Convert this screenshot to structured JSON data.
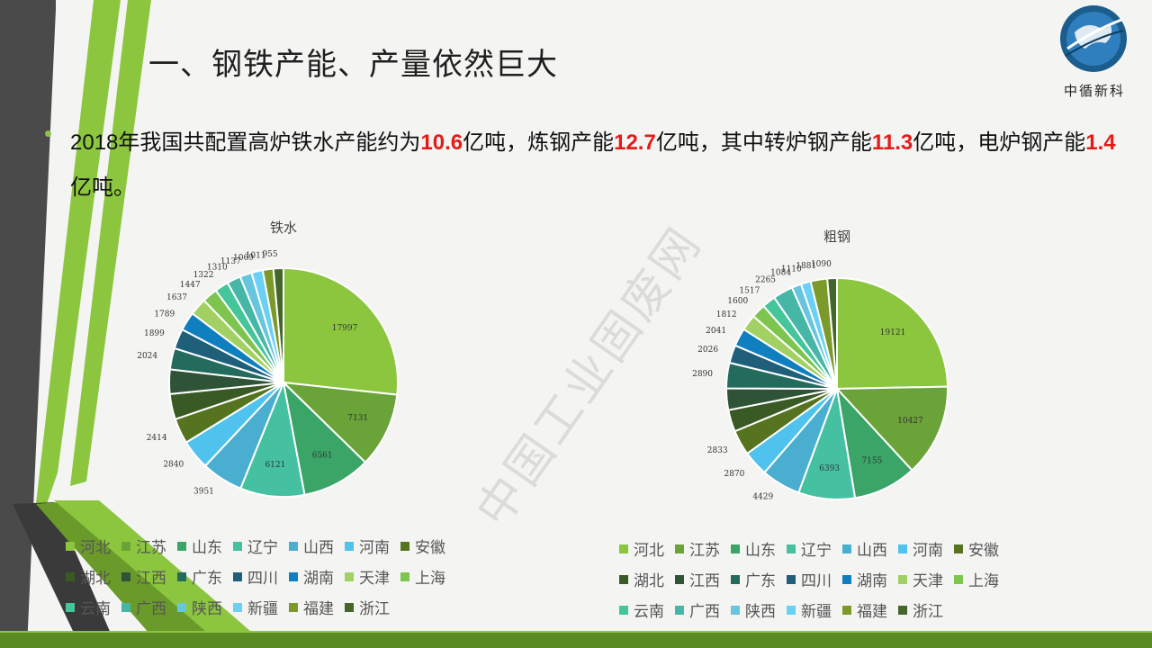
{
  "title": "一、钢铁产能、产量依然巨大",
  "logo": {
    "name": "中循新科"
  },
  "bullet": {
    "segments": [
      {
        "text": "2018年我国共配置高炉铁水产能约为",
        "hl": false
      },
      {
        "text": "10.6",
        "hl": true
      },
      {
        "text": "亿吨，炼钢产能",
        "hl": false
      },
      {
        "text": "12.7",
        "hl": true
      },
      {
        "text": "亿吨，其中转炉钢产能",
        "hl": false
      },
      {
        "text": "11.3",
        "hl": true
      },
      {
        "text": "亿吨，电炉钢产能",
        "hl": false
      },
      {
        "text": "1.4",
        "hl": true
      },
      {
        "text": "亿吨。",
        "hl": false
      }
    ]
  },
  "watermark": "中国工业固废网",
  "colors": {
    "palette": [
      "#8cc63f",
      "#6aa338",
      "#3aa567",
      "#45c1a1",
      "#4aaed0",
      "#4fc3ee",
      "#56741f",
      "#3a5a25",
      "#2f5337",
      "#236b5c",
      "#1f5f7a",
      "#0f7fbf",
      "#a3d063",
      "#7dc54f",
      "#44c59a",
      "#46b6a7",
      "#67c5dd",
      "#6ad0f4",
      "#7b9a2a",
      "#44662a"
    ],
    "accent_red": "#e41b17"
  },
  "chart_data": [
    {
      "type": "pie",
      "title": "铁水",
      "categories": [
        "河北",
        "江苏",
        "山东",
        "辽宁",
        "山西",
        "河南",
        "安徽",
        "湖北",
        "江西",
        "广东",
        "四川",
        "湖南",
        "天津",
        "上海",
        "云南",
        "广西",
        "陕西",
        "新疆",
        "福建",
        "浙江"
      ],
      "values": [
        17997,
        7131,
        6561,
        6121,
        3951,
        2840,
        2414,
        2414,
        2334,
        2024,
        1899,
        1789,
        1637,
        1447,
        1322,
        1310,
        1137,
        1069,
        1011,
        955
      ],
      "data_labels": [
        "17997",
        "7131",
        "6561",
        "6121",
        "3951",
        "2840",
        "2414",
        "",
        "",
        "2024",
        "1899",
        "1789",
        "1637",
        "1447",
        "1322",
        "1310",
        "1137",
        "1069",
        "1011",
        "955"
      ],
      "legend": "bottom"
    },
    {
      "type": "pie",
      "title": "粗钢",
      "categories": [
        "河北",
        "江苏",
        "山东",
        "辽宁",
        "山西",
        "河南",
        "安徽",
        "湖北",
        "江西",
        "广东",
        "四川",
        "湖南",
        "天津",
        "上海",
        "云南",
        "广西",
        "陕西",
        "新疆",
        "福建",
        "浙江"
      ],
      "values": [
        19121,
        10427,
        7155,
        6393,
        4429,
        2870,
        2833,
        2470,
        2437,
        2890,
        2026,
        2041,
        1812,
        1600,
        1517,
        2265,
        1084,
        1110,
        1881,
        1090
      ],
      "data_labels": [
        "19121",
        "10427",
        "7155",
        "6393",
        "4429",
        "2870",
        "2833",
        "",
        "",
        "2890",
        "2026",
        "2041",
        "1812",
        "1600",
        "1517",
        "2265",
        "1084",
        "1110",
        "1881",
        "1090"
      ],
      "legend": "bottom"
    }
  ]
}
